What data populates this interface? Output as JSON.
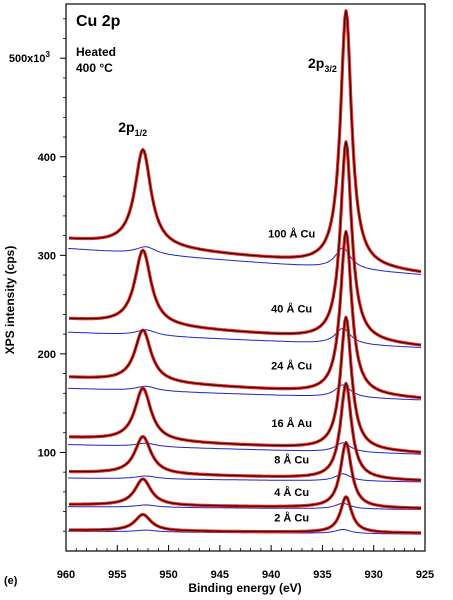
{
  "chart_data": {
    "type": "line",
    "panel_label": "(e)",
    "title": "Cu 2p",
    "condition_line1": "Heated",
    "condition_line2": "400 °C",
    "xlabel": "Binding energy (eV)",
    "ylabel": "XPS intensity (cps)",
    "xlim": [
      960,
      925
    ],
    "ylim": [
      0,
      555000
    ],
    "x_ticks": [
      960,
      955,
      950,
      945,
      940,
      935,
      930,
      925
    ],
    "y_ticks": [
      {
        "value": 100000,
        "label": "100"
      },
      {
        "value": 200000,
        "label": "200"
      },
      {
        "value": 300000,
        "label": "300"
      },
      {
        "value": 400000,
        "label": "400"
      },
      {
        "value": 500000,
        "label": "500x10"
      }
    ],
    "y_tick_exponent": "3",
    "peak_labels": [
      {
        "main": "2p",
        "sub": "1/2",
        "x": 953.5,
        "y": 425000
      },
      {
        "main": "2p",
        "sub": "3/2",
        "x": 935.0,
        "y": 490000
      }
    ],
    "colors": {
      "data": "#e8231e",
      "fit": "#000000",
      "background": "#1f25c4"
    },
    "series": [
      {
        "name": "100 Å Cu",
        "label_at": [
          938,
          318000
        ],
        "bg_left": 307000,
        "bg_right": 280000,
        "peak_1_2": 407000,
        "peak_3_2": 548000,
        "data_left": 316000,
        "data_right": 281000
      },
      {
        "name": "40 Å Cu",
        "label_at": [
          938,
          242000
        ],
        "bg_left": 222000,
        "bg_right": 206000,
        "peak_1_2": 305000,
        "peak_3_2": 415000,
        "data_left": 235000,
        "data_right": 207000
      },
      {
        "name": "24 Å Cu",
        "label_at": [
          938,
          184000
        ],
        "bg_left": 165000,
        "bg_right": 153000,
        "peak_1_2": 224000,
        "peak_3_2": 324000,
        "data_left": 176000,
        "data_right": 154000
      },
      {
        "name": "16 Å Au",
        "label_at": [
          938,
          126000
        ],
        "bg_left": 108000,
        "bg_right": 98000,
        "peak_1_2": 165000,
        "peak_3_2": 237000,
        "data_left": 115000,
        "data_right": 99000
      },
      {
        "name": "8 Å Cu",
        "label_at": [
          938,
          89000
        ],
        "bg_left": 74000,
        "bg_right": 70000,
        "peak_1_2": 116000,
        "peak_3_2": 170000,
        "data_left": 80000,
        "data_right": 71000
      },
      {
        "name": "4 Å Cu",
        "label_at": [
          938,
          56000
        ],
        "bg_left": 45000,
        "bg_right": 42000,
        "peak_1_2": 73000,
        "peak_3_2": 110000,
        "data_left": 47000,
        "data_right": 43000
      },
      {
        "name": "2 Å Cu",
        "label_at": [
          938,
          30000
        ],
        "bg_left": 20000,
        "bg_right": 17000,
        "peak_1_2": 37000,
        "peak_3_2": 55000,
        "data_left": 21000,
        "data_right": 18000
      }
    ]
  }
}
